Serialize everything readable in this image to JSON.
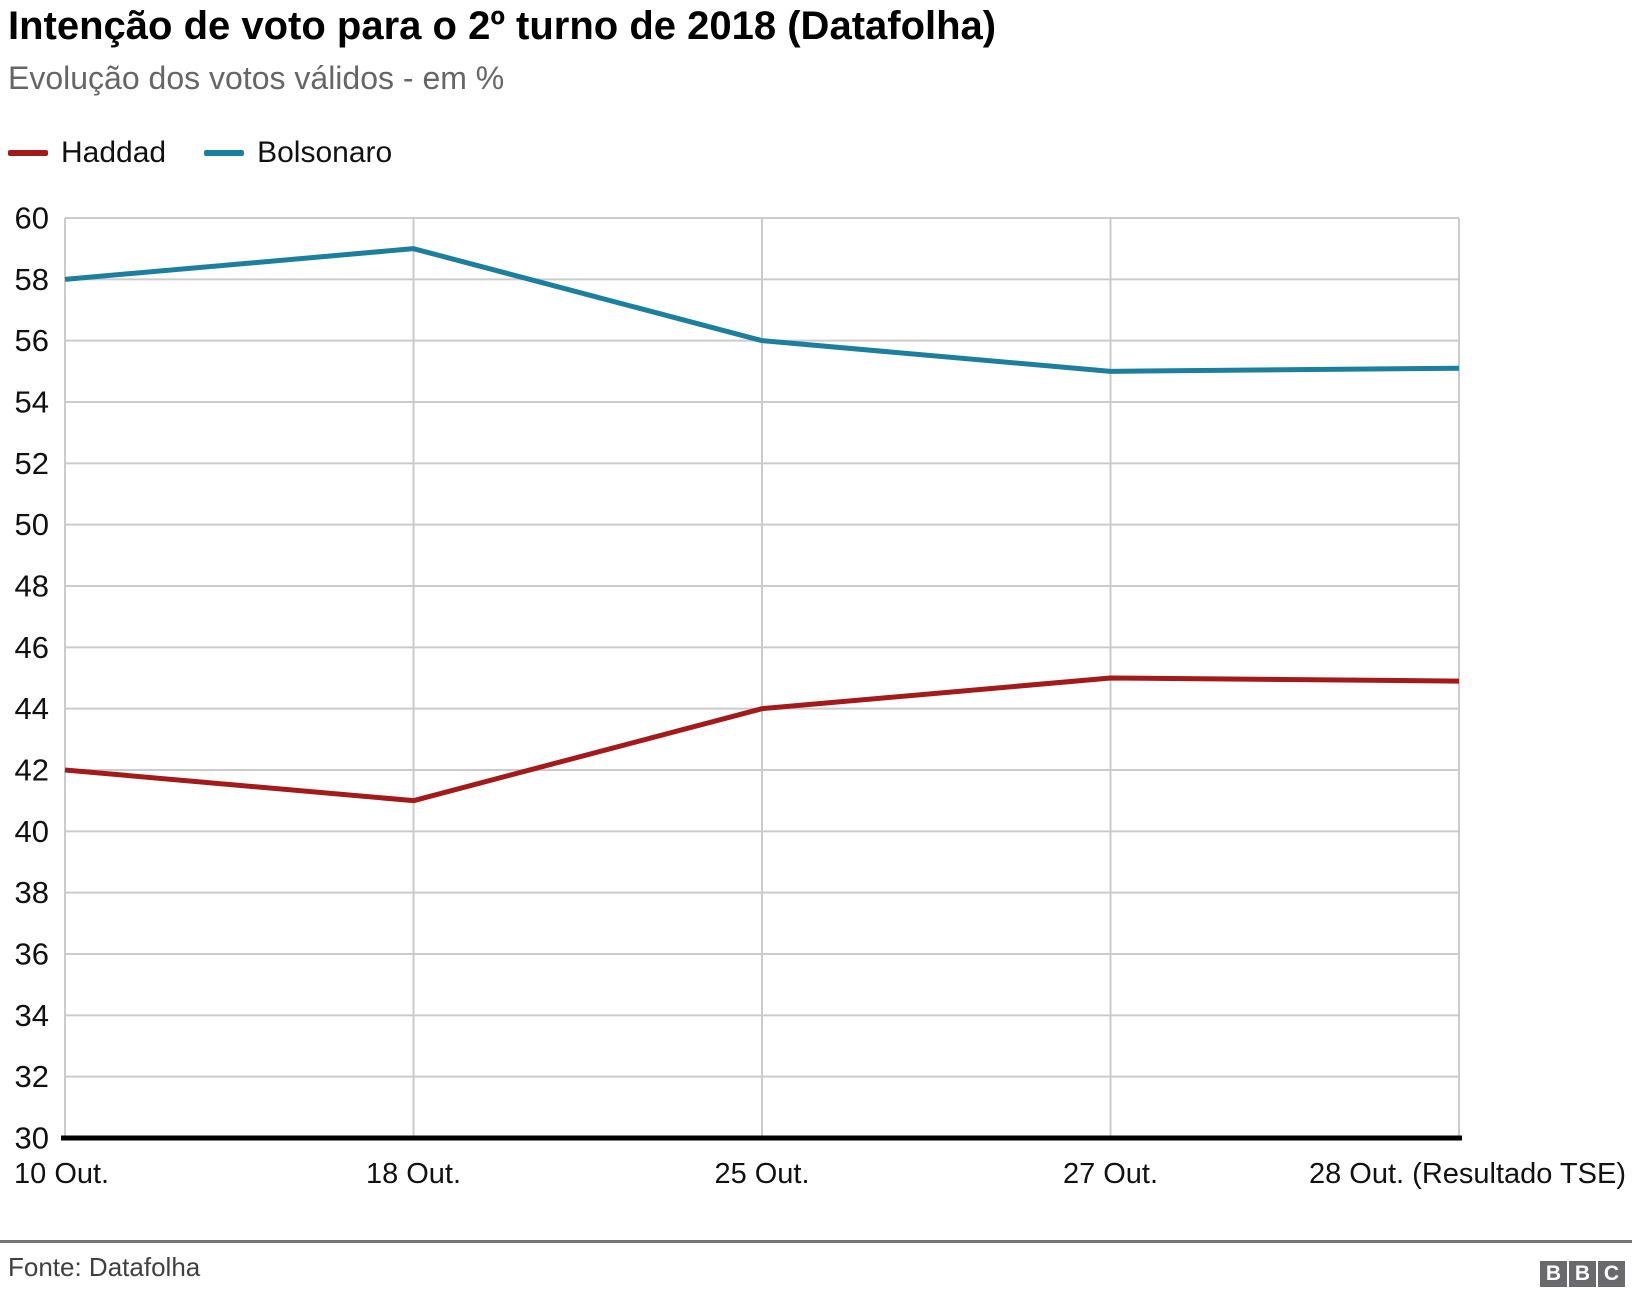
{
  "header": {
    "title": "Intenção de voto para o 2º turno de 2018 (Datafolha)",
    "subtitle": "Evolução dos votos válidos - em %"
  },
  "chart_data": {
    "type": "line",
    "title": "Intenção de voto para o 2º turno de 2018 (Datafolha)",
    "subtitle": "Evolução dos votos válidos - em %",
    "categories": [
      "10 Out.",
      "18 Out.",
      "25 Out.",
      "27 Out.",
      "28 Out. (Resultado TSE)"
    ],
    "series": [
      {
        "name": "Haddad",
        "color": "#a21a1a",
        "values": [
          42,
          41,
          44,
          45,
          44.9
        ]
      },
      {
        "name": "Bolsonaro",
        "color": "#1d7f9e",
        "values": [
          58,
          59,
          56,
          55,
          55.1
        ]
      }
    ],
    "xlabel": "",
    "ylabel": "",
    "ylim": [
      30,
      60
    ],
    "ytick_step": 2,
    "grid": true,
    "legend_position": "top-left",
    "colors": {
      "grid": "#cbcbcb",
      "axis": "#000000",
      "tick_text": "#111111"
    }
  },
  "footer": {
    "source": "Fonte: Datafolha",
    "logo_letters": [
      "B",
      "B",
      "C"
    ]
  }
}
